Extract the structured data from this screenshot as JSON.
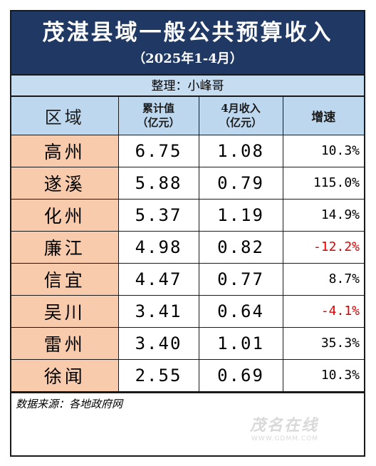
{
  "title": "茂湛县域一般公共预算收入",
  "subtitle": "（2025年1-4月）",
  "compiler": "整理：小峰哥",
  "headers": {
    "region": "区域",
    "cumulative_line1": "累计值",
    "cumulative_line2": "（亿元）",
    "april_line1": "4月收入",
    "april_line2": "（亿元）",
    "growth": "增速"
  },
  "rows": [
    {
      "region": "高州",
      "cumulative": "6.75",
      "april": "1.08",
      "growth": "10.3%",
      "negative": false
    },
    {
      "region": "遂溪",
      "cumulative": "5.88",
      "april": "0.79",
      "growth": "115.0%",
      "negative": false
    },
    {
      "region": "化州",
      "cumulative": "5.37",
      "april": "1.19",
      "growth": "14.9%",
      "negative": false
    },
    {
      "region": "廉江",
      "cumulative": "4.98",
      "april": "0.82",
      "growth": "-12.2%",
      "negative": true
    },
    {
      "region": "信宜",
      "cumulative": "4.47",
      "april": "0.77",
      "growth": "8.7%",
      "negative": false
    },
    {
      "region": "吴川",
      "cumulative": "3.41",
      "april": "0.64",
      "growth": "-4.1%",
      "negative": true
    },
    {
      "region": "雷州",
      "cumulative": "3.40",
      "april": "1.01",
      "growth": "35.3%",
      "negative": false
    },
    {
      "region": "徐闻",
      "cumulative": "2.55",
      "april": "0.69",
      "growth": "10.3%",
      "negative": false
    }
  ],
  "source": "数据来源：各地政府网",
  "watermark": {
    "logo": "茂名在线",
    "url": "WWW.GDMM.COM"
  },
  "colors": {
    "title_bg": "#1f3864",
    "header_bg": "#bdd7ee",
    "region_bg": "#f8cbad",
    "negative": "#e00000"
  }
}
